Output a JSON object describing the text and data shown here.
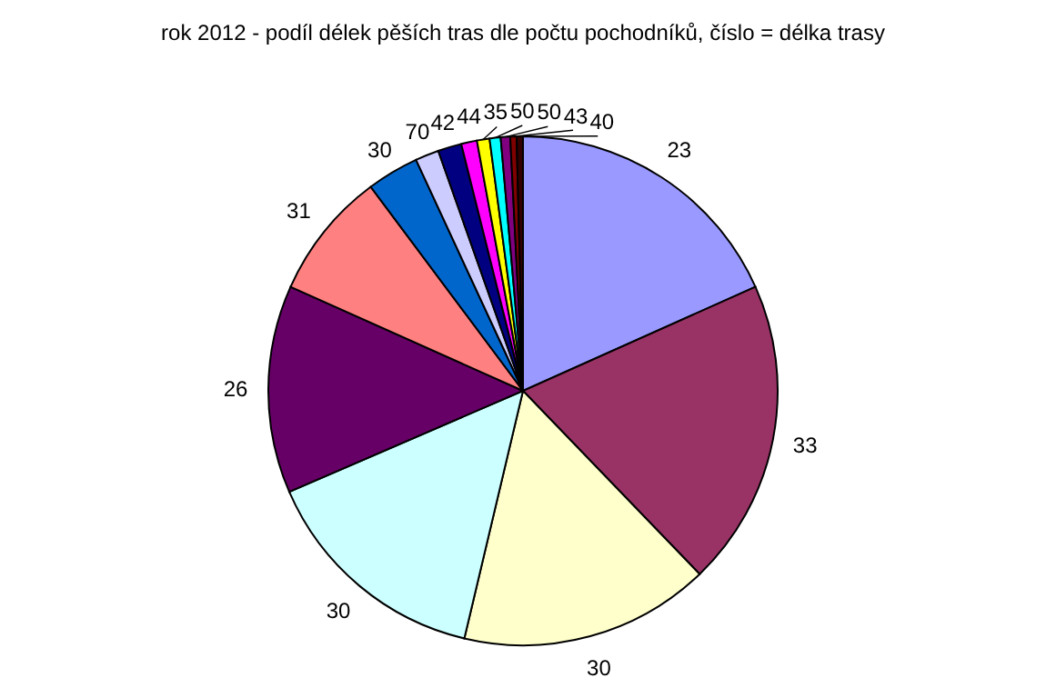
{
  "chart_data": {
    "type": "pie",
    "title": "rok 2012 - podíl délek pěších tras dle počtu pochodníků, číslo = délka trasy",
    "categories": [
      "23",
      "33",
      "30",
      "30",
      "26",
      "31",
      "30",
      "70",
      "42",
      "44",
      "35",
      "50",
      "50",
      "43",
      "40"
    ],
    "values": [
      18.3,
      19.5,
      15.9,
      14.8,
      13.2,
      8.1,
      3.3,
      1.5,
      1.5,
      1.0,
      0.8,
      0.7,
      0.6,
      0.4,
      0.4
    ],
    "colors": [
      "#9999ff",
      "#993366",
      "#ffffcc",
      "#ccffff",
      "#660066",
      "#ff8080",
      "#0066cc",
      "#ccccff",
      "#000080",
      "#ff00ff",
      "#ffff00",
      "#00ffff",
      "#800080",
      "#800000",
      "#330000"
    ]
  }
}
